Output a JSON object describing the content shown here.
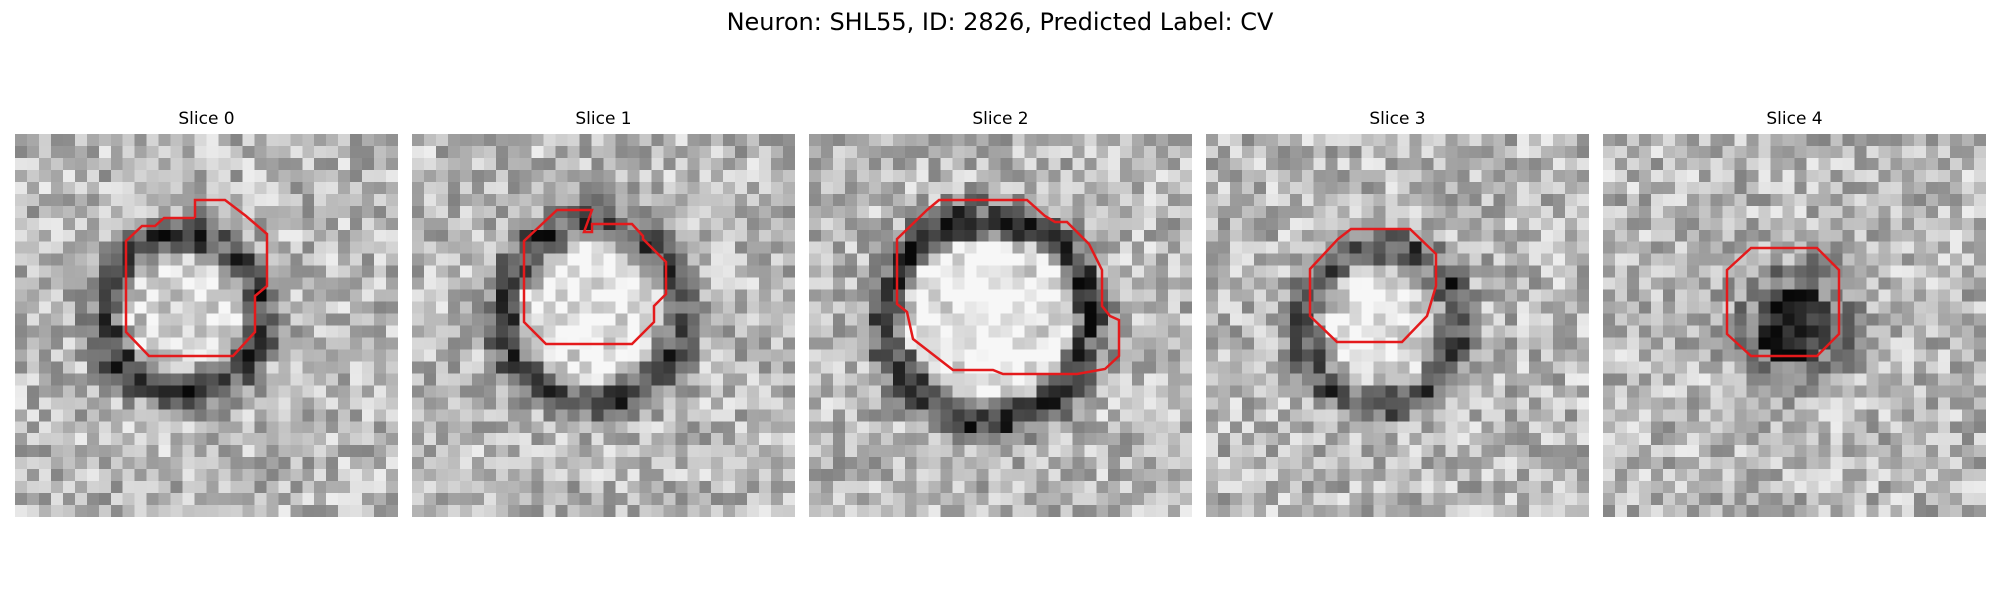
{
  "title": "Neuron: SHL55, ID: 2826, Predicted Label: CV",
  "contour_color": "#e41a1c",
  "slices": [
    {
      "label": "Slice 0"
    },
    {
      "label": "Slice 1"
    },
    {
      "label": "Slice 2"
    },
    {
      "label": "Slice 3"
    },
    {
      "label": "Slice 4"
    }
  ]
}
